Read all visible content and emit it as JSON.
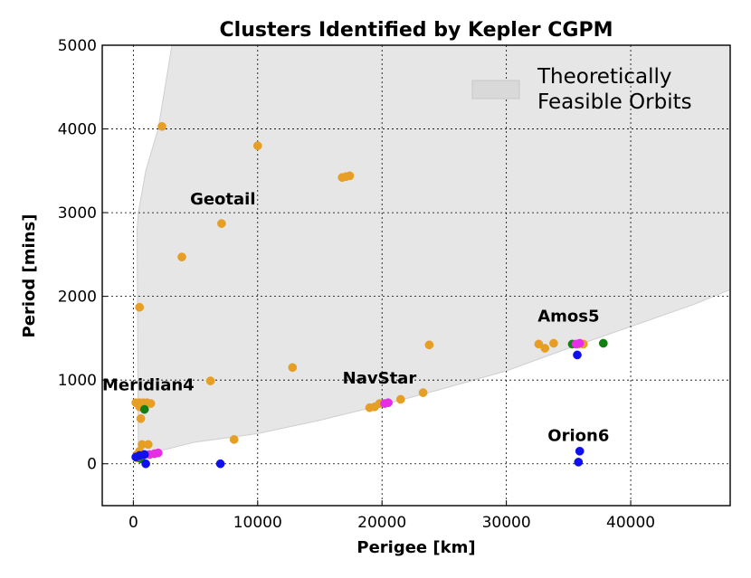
{
  "chart_data": {
    "type": "scatter",
    "title": "Clusters Identified by Kepler CGPM",
    "xlabel": "Perigee [km]",
    "ylabel": "Period [mins]",
    "xlim": [
      -2500,
      48000
    ],
    "ylim": [
      -500,
      5000
    ],
    "xticks": [
      0,
      10000,
      20000,
      30000,
      40000
    ],
    "yticks": [
      0,
      1000,
      2000,
      3000,
      4000,
      5000
    ],
    "grid": true,
    "legend": {
      "position": "top-right",
      "entries": [
        "Theoretically",
        "Feasible Orbits"
      ],
      "color": "#d9d9d9"
    },
    "feasible_region": {
      "color": "#e6e6e6",
      "upper_boundary": [
        [
          300,
          2800
        ],
        [
          400,
          3000
        ],
        [
          1000,
          3500
        ],
        [
          2000,
          4000
        ],
        [
          3100,
          5000
        ]
      ],
      "lower_boundary": [
        [
          400,
          95
        ],
        [
          2000,
          150
        ],
        [
          5000,
          260
        ],
        [
          10000,
          360
        ],
        [
          15000,
          520
        ],
        [
          20000,
          700
        ],
        [
          25000,
          900
        ],
        [
          30000,
          1110
        ],
        [
          35000,
          1380
        ],
        [
          40000,
          1640
        ],
        [
          45000,
          1900
        ],
        [
          48000,
          2080
        ]
      ]
    },
    "annotations": [
      {
        "text": "Geotail",
        "x": 7200,
        "y": 3100
      },
      {
        "text": "Meridian4",
        "x": 1200,
        "y": 880
      },
      {
        "text": "NavStar",
        "x": 19800,
        "y": 960
      },
      {
        "text": "Amos5",
        "x": 35000,
        "y": 1700
      },
      {
        "text": "Orion6",
        "x": 35800,
        "y": 270
      }
    ],
    "series": [
      {
        "name": "orange",
        "color": "#e69e24",
        "points": [
          [
            2300,
            4030
          ],
          [
            10000,
            3800
          ],
          [
            16800,
            3420
          ],
          [
            17100,
            3430
          ],
          [
            17400,
            3440
          ],
          [
            7100,
            2870
          ],
          [
            3900,
            2470
          ],
          [
            500,
            1870
          ],
          [
            6200,
            990
          ],
          [
            12800,
            1150
          ],
          [
            23800,
            1420
          ],
          [
            200,
            730
          ],
          [
            500,
            730
          ],
          [
            800,
            730
          ],
          [
            1100,
            730
          ],
          [
            1400,
            720
          ],
          [
            500,
            680
          ],
          [
            600,
            540
          ],
          [
            19000,
            670
          ],
          [
            19400,
            680
          ],
          [
            19800,
            720
          ],
          [
            21500,
            770
          ],
          [
            23300,
            850
          ],
          [
            8100,
            290
          ],
          [
            700,
            230
          ],
          [
            1200,
            230
          ],
          [
            500,
            150
          ],
          [
            32600,
            1430
          ],
          [
            33100,
            1380
          ],
          [
            33800,
            1440
          ],
          [
            35800,
            1430
          ],
          [
            36200,
            1430
          ],
          [
            300,
            70
          ],
          [
            300,
            110
          ]
        ]
      },
      {
        "name": "green",
        "color": "#117f11",
        "points": [
          [
            900,
            650
          ],
          [
            35300,
            1430
          ],
          [
            37800,
            1440
          ],
          [
            600,
            60
          ]
        ]
      },
      {
        "name": "magenta",
        "color": "#e52ee5",
        "points": [
          [
            20200,
            720
          ],
          [
            20500,
            730
          ],
          [
            35600,
            1430
          ],
          [
            35900,
            1440
          ],
          [
            1300,
            110
          ],
          [
            1700,
            120
          ],
          [
            2000,
            130
          ],
          [
            300,
            80
          ]
        ]
      },
      {
        "name": "blue",
        "color": "#1010ee",
        "points": [
          [
            35700,
            1300
          ],
          [
            35900,
            150
          ],
          [
            35800,
            20
          ],
          [
            7000,
            0
          ],
          [
            1000,
            0
          ],
          [
            500,
            100
          ],
          [
            900,
            110
          ],
          [
            200,
            80
          ]
        ]
      }
    ]
  }
}
